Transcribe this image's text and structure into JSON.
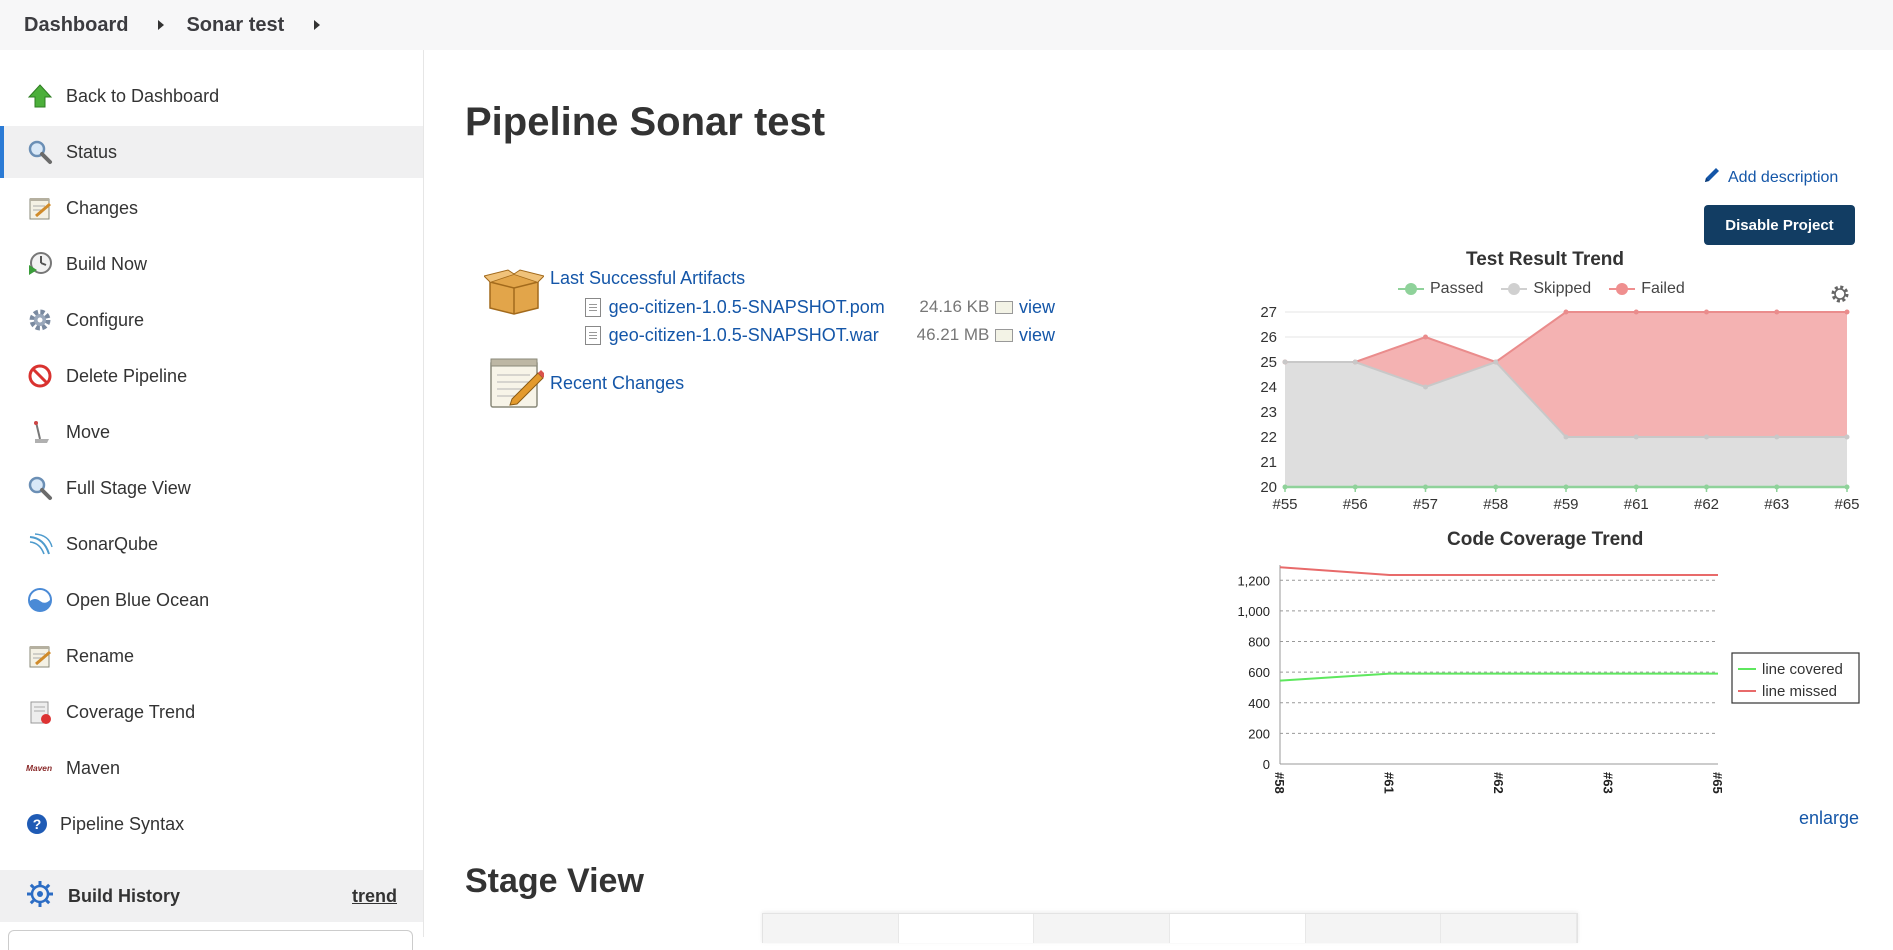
{
  "breadcrumb": {
    "items": [
      "Dashboard",
      "Sonar test"
    ]
  },
  "sidebar": {
    "items": [
      {
        "label": "Back to Dashboard",
        "icon": "up-arrow-icon"
      },
      {
        "label": "Status",
        "icon": "magnifier-icon",
        "active": true
      },
      {
        "label": "Changes",
        "icon": "notepad-icon"
      },
      {
        "label": "Build Now",
        "icon": "clock-play-icon"
      },
      {
        "label": "Configure",
        "icon": "gear-icon"
      },
      {
        "label": "Delete Pipeline",
        "icon": "no-entry-icon"
      },
      {
        "label": "Move",
        "icon": "move-icon"
      },
      {
        "label": "Full Stage View",
        "icon": "magnifier-icon"
      },
      {
        "label": "SonarQube",
        "icon": "sonarqube-icon"
      },
      {
        "label": "Open Blue Ocean",
        "icon": "blue-ocean-icon"
      },
      {
        "label": "Rename",
        "icon": "notepad-icon"
      },
      {
        "label": "Coverage Trend",
        "icon": "coverage-icon"
      },
      {
        "label": "Maven",
        "icon": "maven-logo-icon",
        "logo_text": "Maven"
      },
      {
        "label": "Pipeline Syntax",
        "icon": "help-icon"
      }
    ],
    "build_history": {
      "title": "Build History",
      "trend_link": "trend"
    }
  },
  "main": {
    "title": "Pipeline Sonar test",
    "add_description": "Add description",
    "disable_button": "Disable Project",
    "artifacts": {
      "title": "Last Successful Artifacts",
      "files": [
        {
          "name": "geo-citizen-1.0.5-SNAPSHOT.pom",
          "size": "24.16 KB",
          "view": "view"
        },
        {
          "name": "geo-citizen-1.0.5-SNAPSHOT.war",
          "size": "46.21 MB",
          "view": "view"
        }
      ]
    },
    "recent_changes": "Recent Changes",
    "enlarge": "enlarge",
    "stage_view_title": "Stage View"
  },
  "colors": {
    "accent": "#2b7bd5",
    "link": "#1456a8",
    "button": "#123d63",
    "passed": "#8fd29a",
    "skipped": "#d0d0d0",
    "failed": "#ef8f8f",
    "line_covered": "#5ee75e",
    "line_missed": "#e86a6a"
  },
  "chart_data": [
    {
      "type": "area",
      "title": "Test Result Trend",
      "categories": [
        "#55",
        "#56",
        "#57",
        "#58",
        "#59",
        "#61",
        "#62",
        "#63",
        "#65"
      ],
      "ylim": [
        20,
        27
      ],
      "yticks": [
        20,
        21,
        22,
        23,
        24,
        25,
        26,
        27
      ],
      "legend_position": "top",
      "grid": true,
      "series": [
        {
          "name": "Passed",
          "values": [
            20,
            20,
            20,
            20,
            20,
            20,
            20,
            20,
            20
          ]
        },
        {
          "name": "Skipped",
          "values": [
            25,
            25,
            24,
            25,
            22,
            22,
            22,
            22,
            22
          ]
        },
        {
          "name": "Failed",
          "values": [
            25,
            25,
            26,
            25,
            27,
            27,
            27,
            27,
            27
          ]
        }
      ]
    },
    {
      "type": "line",
      "title": "Code Coverage Trend",
      "categories": [
        "#58",
        "#61",
        "#62",
        "#63",
        "#65"
      ],
      "ylim": [
        0,
        1300
      ],
      "yticks": [
        0,
        200,
        400,
        600,
        800,
        1000,
        1200
      ],
      "ytick_labels": [
        "0",
        "200",
        "400",
        "600",
        "800",
        "1,000",
        "1,200"
      ],
      "legend_position": "right",
      "grid": true,
      "series": [
        {
          "name": "line covered",
          "values": [
            545,
            590,
            590,
            590,
            590
          ]
        },
        {
          "name": "line missed",
          "values": [
            1285,
            1235,
            1235,
            1235,
            1235
          ]
        }
      ]
    }
  ]
}
